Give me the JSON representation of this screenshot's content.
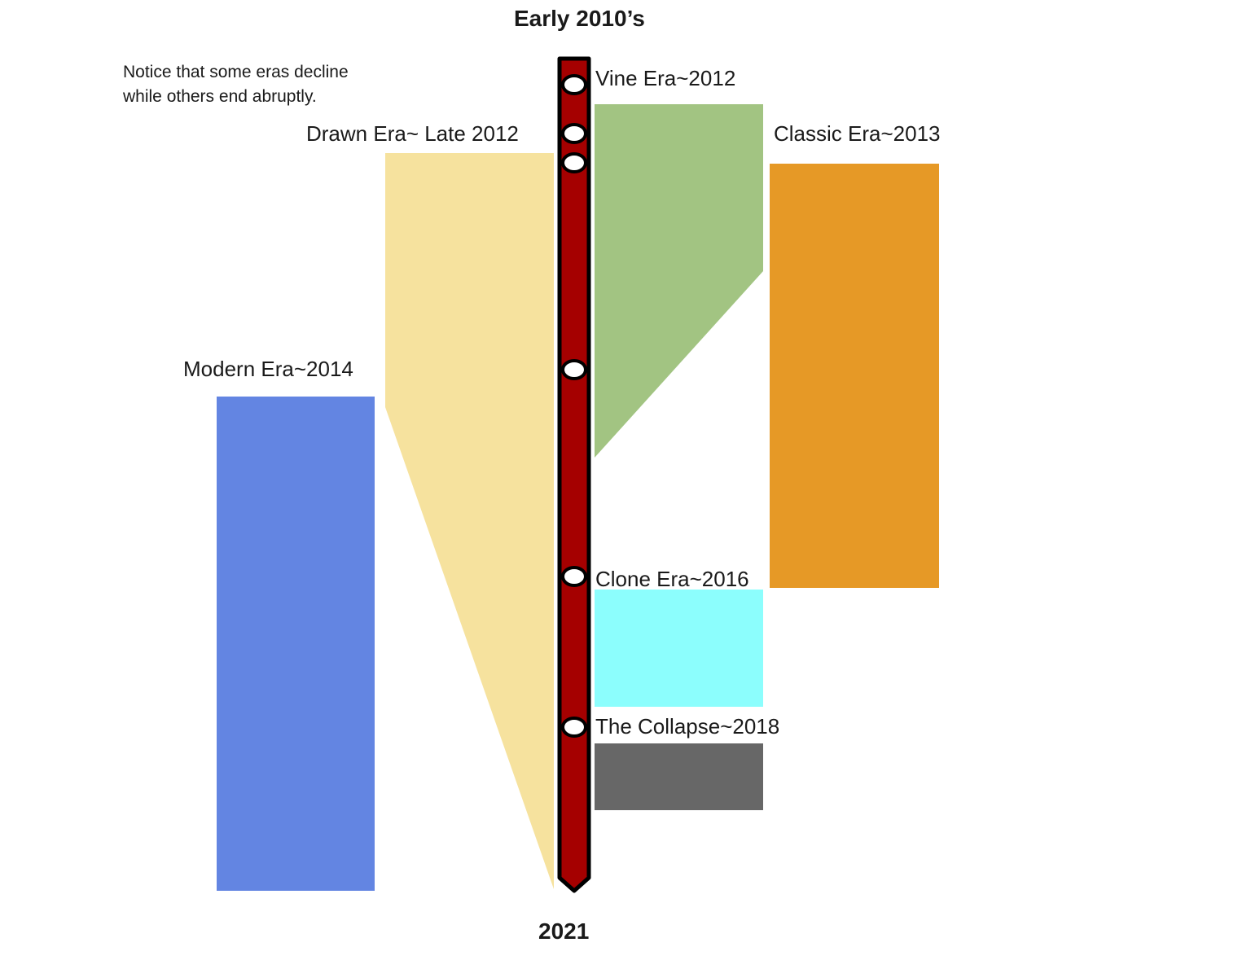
{
  "header": {
    "top_label": "Early 2010’s",
    "bottom_label": "2021"
  },
  "note": {
    "line1": "Notice that some eras decline",
    "line2": "while others end abruptly."
  },
  "eras": [
    {
      "key": "vine",
      "label": "Vine Era~2012",
      "color": "#a2c482",
      "ending": "decline"
    },
    {
      "key": "drawn",
      "label": "Drawn Era~ Late 2012",
      "color": "#f6e29e",
      "ending": "decline"
    },
    {
      "key": "classic",
      "label": "Classic Era~2013",
      "color": "#e69926",
      "ending": "abrupt"
    },
    {
      "key": "modern",
      "label": "Modern Era~2014",
      "color": "#6385e2",
      "ending": "abrupt"
    },
    {
      "key": "clone",
      "label": "Clone Era~2016",
      "color": "#8cfefd",
      "ending": "abrupt"
    },
    {
      "key": "collapse",
      "label": "The Collapse~2018",
      "color": "#676767",
      "ending": "abrupt"
    }
  ],
  "timeline": {
    "color": "#a50000",
    "markers": 6
  }
}
